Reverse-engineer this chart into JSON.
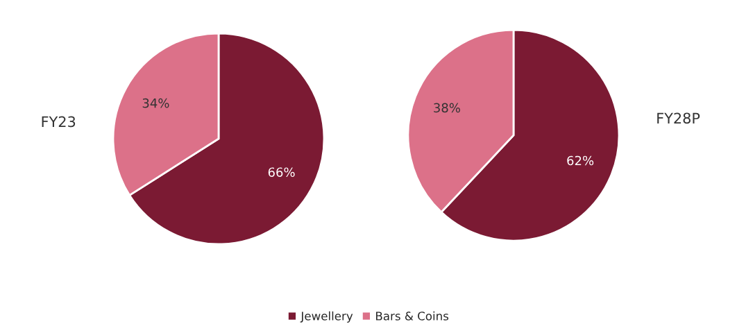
{
  "chart_data": [
    {
      "type": "pie",
      "title": "FY23",
      "categories": [
        "Jewellery",
        "Bars & Coins"
      ],
      "values": [
        66,
        34
      ],
      "value_labels": [
        "66%",
        "34%"
      ],
      "colors": [
        "#7b1a33",
        "#dc7189"
      ],
      "legend": "bottom"
    },
    {
      "type": "pie",
      "title": "FY28P",
      "values": [
        62,
        38
      ],
      "value_labels": [
        "62%",
        "38%"
      ],
      "colors": [
        "#7b1a33",
        "#dc7189"
      ]
    }
  ]
}
